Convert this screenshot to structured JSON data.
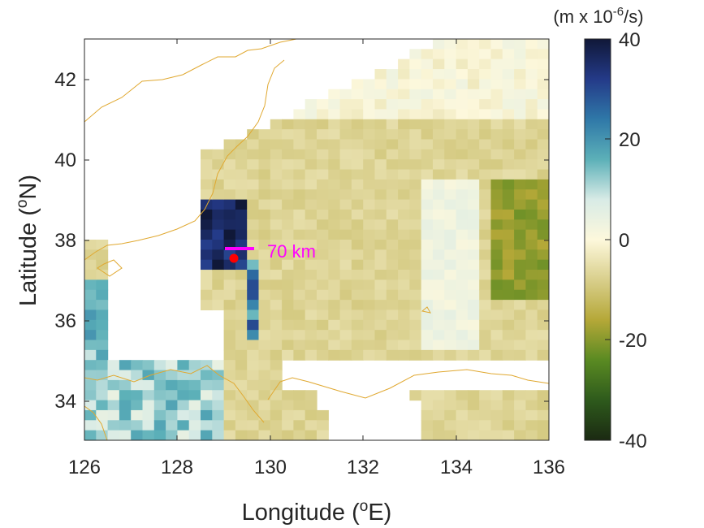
{
  "map": {
    "xaxis": {
      "label_prefix": "Longitude (",
      "label_sup": "o",
      "label_suffix": "E)",
      "ticks": [
        "126",
        "128",
        "130",
        "132",
        "134",
        "136"
      ]
    },
    "yaxis": {
      "label_prefix": "Latitude (",
      "label_sup": "o",
      "label_suffix": "N)",
      "ticks": [
        "34",
        "36",
        "38",
        "40",
        "42"
      ]
    },
    "extent": {
      "lon": [
        126,
        136
      ],
      "lat": [
        33,
        43
      ]
    },
    "scale_bar_label": "70 km",
    "scale_bar_color": "#ff00ff",
    "station_color": "#ff0000",
    "coast_color": "#e0a830"
  },
  "colorbar": {
    "unit_prefix": "(m x 10",
    "unit_sup": "-6",
    "unit_suffix": "/s)",
    "ticks": [
      "40",
      "20",
      "0",
      "-20",
      "-40"
    ],
    "range": [
      -40,
      40
    ],
    "colors": [
      "#1b2a12",
      "#2e5a1c",
      "#5a8a22",
      "#b5a838",
      "#d9cf8c",
      "#fdf8dc",
      "#d8ebe6",
      "#5cb0b8",
      "#2f78a8",
      "#243a88",
      "#101838"
    ]
  }
}
